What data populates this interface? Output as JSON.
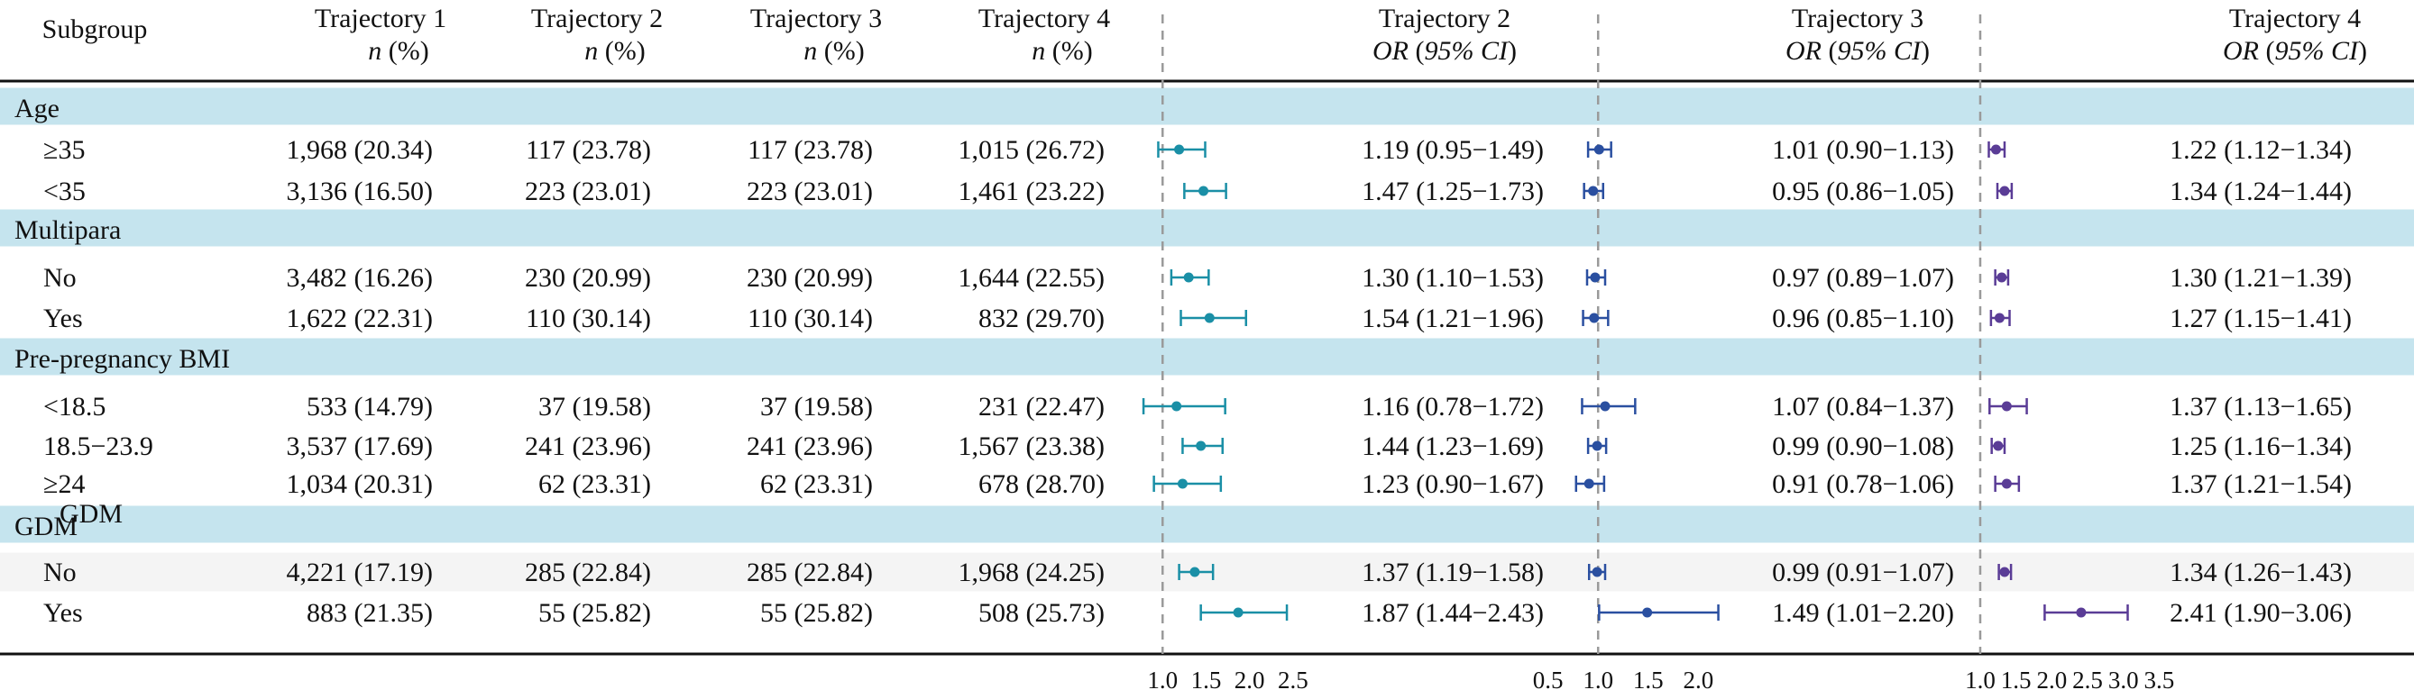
{
  "chart_data": {
    "type": "forest",
    "title": "",
    "header": {
      "subgroup": "Subgroup",
      "counts": [
        {
          "title": "Trajectory 1",
          "sub": "n (%)"
        },
        {
          "title": "Trajectory 2",
          "sub": "n (%)"
        },
        {
          "title": "Trajectory 3",
          "sub": "n (%)"
        },
        {
          "title": "Trajectory 4",
          "sub": "n (%)"
        }
      ],
      "or_panels": [
        {
          "title": "Trajectory 2",
          "sub": "OR (95% CI)"
        },
        {
          "title": "Trajectory 3",
          "sub": "OR (95% CI)"
        },
        {
          "title": "Trajectory 4",
          "sub": "OR (95% CI)"
        }
      ]
    },
    "panels": [
      {
        "name": "Trajectory 2",
        "color": "#1a8fa6",
        "ref": 1.0,
        "xlim": [
          0.8,
          3.0
        ],
        "ticks": [
          1.0,
          1.5,
          2.0,
          2.5
        ],
        "tick_labels": [
          "1.0",
          "1.5",
          "2.0",
          "2.5"
        ]
      },
      {
        "name": "Trajectory 3",
        "color": "#2a4fa0",
        "ref": 1.0,
        "xlim": [
          0.35,
          2.6
        ],
        "ticks": [
          0.5,
          1.0,
          1.5,
          2.0
        ],
        "tick_labels": [
          "0.5",
          "1.0",
          "1.5",
          "2.0"
        ]
      },
      {
        "name": "Trajectory 4",
        "color": "#5a3c96",
        "ref": 1.0,
        "xlim": [
          0.95,
          4.2
        ],
        "ticks": [
          1.0,
          1.5,
          2.0,
          2.5,
          3.0,
          3.5
        ],
        "tick_labels": [
          "1.0",
          "1.5",
          "2.0",
          "2.5",
          "3.0",
          "3.5"
        ]
      }
    ],
    "groups": [
      {
        "label": "Age",
        "rows": [
          {
            "label": "≥35",
            "counts": [
              "1,968 (20.34)",
              "117 (23.78)",
              "117 (23.78)",
              "1,015 (26.72)"
            ],
            "or": [
              {
                "est": 1.19,
                "lo": 0.95,
                "hi": 1.49,
                "text": "1.19 (0.95−1.49)"
              },
              {
                "est": 1.01,
                "lo": 0.9,
                "hi": 1.13,
                "text": "1.01 (0.90−1.13)"
              },
              {
                "est": 1.22,
                "lo": 1.12,
                "hi": 1.34,
                "text": "1.22 (1.12−1.34)"
              }
            ]
          },
          {
            "label": "<35",
            "counts": [
              "3,136 (16.50)",
              "223 (23.01)",
              "223 (23.01)",
              "1,461 (23.22)"
            ],
            "or": [
              {
                "est": 1.47,
                "lo": 1.25,
                "hi": 1.73,
                "text": "1.47 (1.25−1.73)"
              },
              {
                "est": 0.95,
                "lo": 0.86,
                "hi": 1.05,
                "text": "0.95 (0.86−1.05)"
              },
              {
                "est": 1.34,
                "lo": 1.24,
                "hi": 1.44,
                "text": "1.34 (1.24−1.44)"
              }
            ]
          }
        ]
      },
      {
        "label": "Multipara",
        "rows": [
          {
            "label": "No",
            "counts": [
              "3,482 (16.26)",
              "230 (20.99)",
              "230 (20.99)",
              "1,644 (22.55)"
            ],
            "or": [
              {
                "est": 1.3,
                "lo": 1.1,
                "hi": 1.53,
                "text": "1.30 (1.10−1.53)"
              },
              {
                "est": 0.97,
                "lo": 0.89,
                "hi": 1.07,
                "text": "0.97 (0.89−1.07)"
              },
              {
                "est": 1.3,
                "lo": 1.21,
                "hi": 1.39,
                "text": "1.30 (1.21−1.39)"
              }
            ]
          },
          {
            "label": "Yes",
            "counts": [
              "1,622 (22.31)",
              "110 (30.14)",
              "110 (30.14)",
              "832 (29.70)"
            ],
            "or": [
              {
                "est": 1.54,
                "lo": 1.21,
                "hi": 1.96,
                "text": "1.54 (1.21−1.96)"
              },
              {
                "est": 0.96,
                "lo": 0.85,
                "hi": 1.1,
                "text": "0.96 (0.85−1.10)"
              },
              {
                "est": 1.27,
                "lo": 1.15,
                "hi": 1.41,
                "text": "1.27 (1.15−1.41)"
              }
            ]
          }
        ]
      },
      {
        "label": "Pre-pregnancy BMI",
        "rows": [
          {
            "label": "<18.5",
            "counts": [
              "533 (14.79)",
              "37 (19.58)",
              "37 (19.58)",
              "231 (22.47)"
            ],
            "or": [
              {
                "est": 1.16,
                "lo": 0.78,
                "hi": 1.72,
                "text": "1.16 (0.78−1.72)"
              },
              {
                "est": 1.07,
                "lo": 0.84,
                "hi": 1.37,
                "text": "1.07 (0.84−1.37)"
              },
              {
                "est": 1.37,
                "lo": 1.13,
                "hi": 1.65,
                "text": "1.37 (1.13−1.65)"
              }
            ]
          },
          {
            "label": "18.5−23.9",
            "counts": [
              "3,537 (17.69)",
              "241 (23.96)",
              "241 (23.96)",
              "1,567 (23.38)"
            ],
            "or": [
              {
                "est": 1.44,
                "lo": 1.23,
                "hi": 1.69,
                "text": "1.44 (1.23−1.69)"
              },
              {
                "est": 0.99,
                "lo": 0.9,
                "hi": 1.08,
                "text": "0.99 (0.90−1.08)"
              },
              {
                "est": 1.25,
                "lo": 1.16,
                "hi": 1.34,
                "text": "1.25 (1.16−1.34)"
              }
            ]
          },
          {
            "label": "≥24",
            "counts": [
              "1,034 (20.31)",
              "62 (23.31)",
              "62 (23.31)",
              "678 (28.70)"
            ],
            "or": [
              {
                "est": 1.23,
                "lo": 0.9,
                "hi": 1.67,
                "text": "1.23 (0.90−1.67)"
              },
              {
                "est": 0.91,
                "lo": 0.78,
                "hi": 1.06,
                "text": "0.91 (0.78−1.06)"
              },
              {
                "est": 1.37,
                "lo": 1.21,
                "hi": 1.54,
                "text": "1.37 (1.21−1.54)"
              }
            ]
          }
        ]
      },
      {
        "label": "GDM",
        "overlay_label": "GDM",
        "rows": [
          {
            "label": "No",
            "counts": [
              "4,221 (17.19)",
              "285 (22.84)",
              "285 (22.84)",
              "1,968 (24.25)"
            ],
            "or": [
              {
                "est": 1.37,
                "lo": 1.19,
                "hi": 1.58,
                "text": "1.37 (1.19−1.58)"
              },
              {
                "est": 0.99,
                "lo": 0.91,
                "hi": 1.07,
                "text": "0.99 (0.91−1.07)"
              },
              {
                "est": 1.34,
                "lo": 1.26,
                "hi": 1.43,
                "text": "1.34 (1.26−1.43)"
              }
            ]
          },
          {
            "label": "Yes",
            "counts": [
              "883 (21.35)",
              "55 (25.82)",
              "55 (25.82)",
              "508 (25.73)"
            ],
            "or": [
              {
                "est": 1.87,
                "lo": 1.44,
                "hi": 2.43,
                "text": "1.87 (1.44−2.43)"
              },
              {
                "est": 1.49,
                "lo": 1.01,
                "hi": 2.2,
                "text": "1.49 (1.01−2.20)"
              },
              {
                "est": 2.41,
                "lo": 1.9,
                "hi": 3.06,
                "text": "2.41 (1.90−3.06)"
              }
            ]
          }
        ]
      }
    ],
    "colors": {
      "group_band": "#c5e4ee",
      "row_shade": "#f4f4f4",
      "ref_line": "#9a9a9a"
    }
  }
}
